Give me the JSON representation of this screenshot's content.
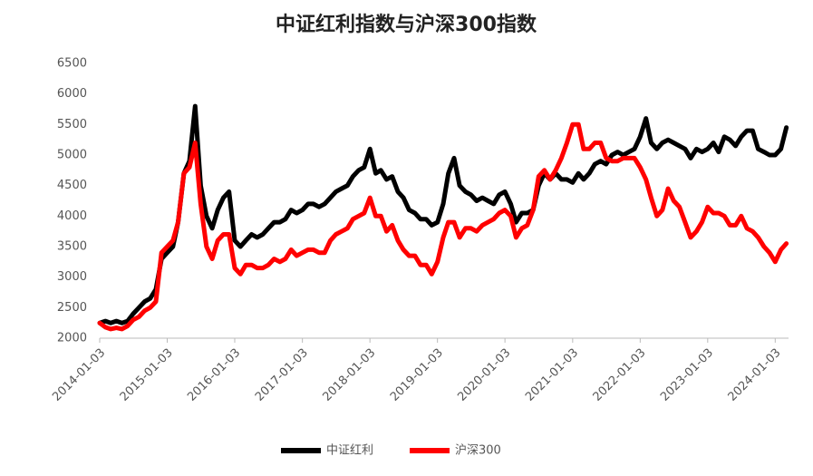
{
  "chart_data": {
    "type": "line",
    "title": "中证红利指数与沪深300指数",
    "x": [
      "2014-01-03",
      "2014-02-03",
      "2014-03-03",
      "2014-04-03",
      "2014-05-03",
      "2014-06-03",
      "2014-07-03",
      "2014-08-03",
      "2014-09-03",
      "2014-10-03",
      "2014-11-03",
      "2014-12-03",
      "2015-01-03",
      "2015-02-03",
      "2015-03-03",
      "2015-04-03",
      "2015-05-03",
      "2015-06-03",
      "2015-07-03",
      "2015-08-03",
      "2015-09-03",
      "2015-10-03",
      "2015-11-03",
      "2015-12-03",
      "2016-01-03",
      "2016-02-03",
      "2016-03-03",
      "2016-04-03",
      "2016-05-03",
      "2016-06-03",
      "2016-07-03",
      "2016-08-03",
      "2016-09-03",
      "2016-10-03",
      "2016-11-03",
      "2016-12-03",
      "2017-01-03",
      "2017-02-03",
      "2017-03-03",
      "2017-04-03",
      "2017-05-03",
      "2017-06-03",
      "2017-07-03",
      "2017-08-03",
      "2017-09-03",
      "2017-10-03",
      "2017-11-03",
      "2017-12-03",
      "2018-01-03",
      "2018-02-03",
      "2018-03-03",
      "2018-04-03",
      "2018-05-03",
      "2018-06-03",
      "2018-07-03",
      "2018-08-03",
      "2018-09-03",
      "2018-10-03",
      "2018-11-03",
      "2018-12-03",
      "2019-01-03",
      "2019-02-03",
      "2019-03-03",
      "2019-04-03",
      "2019-05-03",
      "2019-06-03",
      "2019-07-03",
      "2019-08-03",
      "2019-09-03",
      "2019-10-03",
      "2019-11-03",
      "2019-12-03",
      "2020-01-03",
      "2020-02-03",
      "2020-03-03",
      "2020-04-03",
      "2020-05-03",
      "2020-06-03",
      "2020-07-03",
      "2020-08-03",
      "2020-09-03",
      "2020-10-03",
      "2020-11-03",
      "2020-12-03",
      "2021-01-03",
      "2021-02-03",
      "2021-03-03",
      "2021-04-03",
      "2021-05-03",
      "2021-06-03",
      "2021-07-03",
      "2021-08-03",
      "2021-09-03",
      "2021-10-03",
      "2021-11-03",
      "2021-12-03",
      "2022-01-03",
      "2022-02-03",
      "2022-03-03",
      "2022-04-03",
      "2022-05-03",
      "2022-06-03",
      "2022-07-03",
      "2022-08-03",
      "2022-09-03",
      "2022-10-03",
      "2022-11-03",
      "2022-12-03",
      "2023-01-03",
      "2023-02-03",
      "2023-03-03",
      "2023-04-03",
      "2023-05-03",
      "2023-06-03",
      "2023-07-03",
      "2023-08-03",
      "2023-09-03",
      "2023-10-03",
      "2023-11-03",
      "2023-12-03",
      "2024-01-03",
      "2024-02-03",
      "2024-03-03"
    ],
    "series": [
      {
        "name": "中证红利",
        "color": "#000000",
        "values": [
          2250,
          2280,
          2250,
          2280,
          2250,
          2280,
          2400,
          2500,
          2600,
          2650,
          2800,
          3300,
          3400,
          3500,
          3900,
          4700,
          4900,
          5800,
          4500,
          4000,
          3800,
          4100,
          4300,
          4400,
          3600,
          3500,
          3600,
          3700,
          3650,
          3700,
          3800,
          3900,
          3900,
          3950,
          4100,
          4050,
          4100,
          4200,
          4200,
          4150,
          4200,
          4300,
          4400,
          4450,
          4500,
          4650,
          4750,
          4800,
          5100,
          4700,
          4750,
          4600,
          4650,
          4400,
          4300,
          4100,
          4050,
          3950,
          3950,
          3850,
          3900,
          4200,
          4700,
          4950,
          4500,
          4400,
          4350,
          4250,
          4300,
          4250,
          4200,
          4350,
          4400,
          4200,
          3900,
          4050,
          4050,
          4100,
          4500,
          4700,
          4600,
          4700,
          4600,
          4600,
          4550,
          4700,
          4600,
          4700,
          4850,
          4900,
          4850,
          5000,
          5050,
          5000,
          5050,
          5100,
          5300,
          5600,
          5200,
          5100,
          5200,
          5250,
          5200,
          5150,
          5100,
          4950,
          5100,
          5050,
          5100,
          5200,
          5050,
          5300,
          5250,
          5150,
          5300,
          5400,
          5400,
          5100,
          5050,
          5000,
          5000,
          5100,
          5450
        ]
      },
      {
        "name": "沪深300",
        "color": "#ff0000",
        "values": [
          2250,
          2180,
          2150,
          2170,
          2150,
          2200,
          2300,
          2350,
          2450,
          2500,
          2600,
          3400,
          3500,
          3600,
          3900,
          4700,
          4800,
          5200,
          4200,
          3500,
          3300,
          3600,
          3700,
          3700,
          3150,
          3050,
          3200,
          3200,
          3150,
          3150,
          3200,
          3300,
          3250,
          3300,
          3450,
          3350,
          3400,
          3450,
          3450,
          3400,
          3400,
          3600,
          3700,
          3750,
          3800,
          3950,
          4000,
          4050,
          4300,
          4000,
          4000,
          3750,
          3850,
          3600,
          3450,
          3350,
          3350,
          3200,
          3200,
          3050,
          3250,
          3650,
          3900,
          3900,
          3650,
          3800,
          3800,
          3750,
          3850,
          3900,
          3950,
          4050,
          4100,
          4000,
          3650,
          3800,
          3850,
          4100,
          4650,
          4750,
          4600,
          4750,
          4950,
          5200,
          5500,
          5500,
          5100,
          5100,
          5200,
          5200,
          4950,
          4900,
          4900,
          4950,
          4950,
          4950,
          4800,
          4600,
          4300,
          4000,
          4100,
          4450,
          4250,
          4150,
          3900,
          3650,
          3750,
          3900,
          4150,
          4050,
          4050,
          4000,
          3850,
          3850,
          4000,
          3800,
          3750,
          3650,
          3500,
          3400,
          3250,
          3450,
          3550
        ]
      }
    ],
    "xlim": [
      "2014-01-03",
      "2024-03-15"
    ],
    "xticks": [
      "2014-01-03",
      "2015-01-03",
      "2016-01-03",
      "2017-01-03",
      "2018-01-03",
      "2019-01-03",
      "2020-01-03",
      "2021-01-03",
      "2022-01-03",
      "2023-01-03",
      "2024-01-03"
    ],
    "ylim": [
      2000,
      6500
    ],
    "yticks": [
      2000,
      2500,
      3000,
      3500,
      4000,
      4500,
      5000,
      5500,
      6000,
      6500
    ],
    "grid": false,
    "legend": "bottom"
  }
}
